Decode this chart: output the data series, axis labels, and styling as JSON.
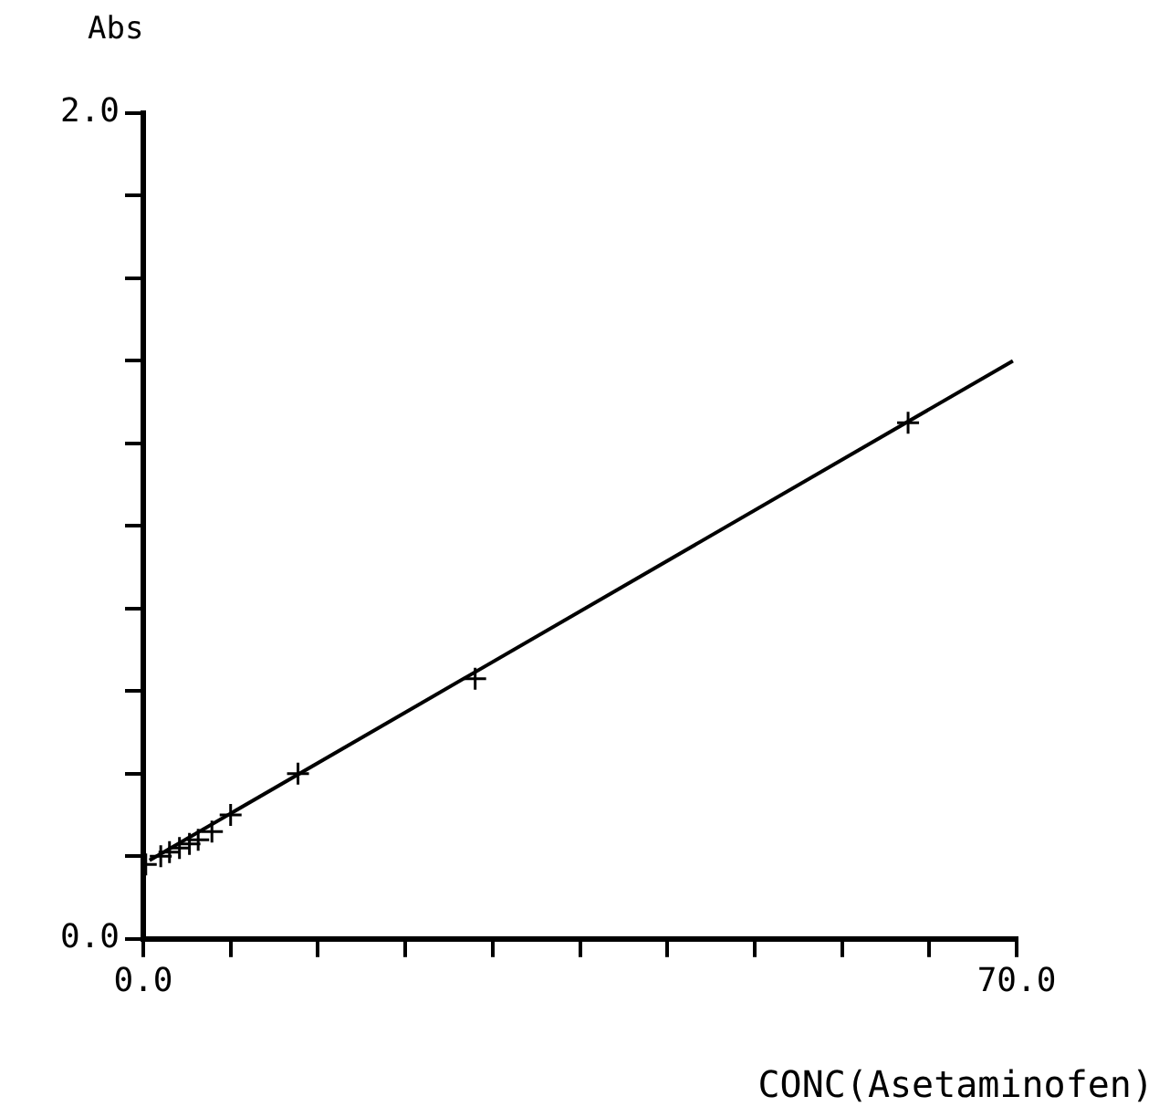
{
  "chart_data": {
    "type": "scatter",
    "xlabel": "CONC(Asetaminofen)",
    "ylabel": "Abs",
    "marker": "cross",
    "grid": false,
    "legend": false,
    "xlim": [
      0,
      70
    ],
    "ylim": [
      0,
      2
    ],
    "xticks": [
      {
        "value": 0,
        "label": "0.0"
      },
      {
        "value": 7,
        "label": null
      },
      {
        "value": 14,
        "label": null
      },
      {
        "value": 21,
        "label": null
      },
      {
        "value": 28,
        "label": null
      },
      {
        "value": 35,
        "label": null
      },
      {
        "value": 42,
        "label": null
      },
      {
        "value": 49,
        "label": null
      },
      {
        "value": 56,
        "label": null
      },
      {
        "value": 63,
        "label": null
      },
      {
        "value": 70,
        "label": "70.0"
      }
    ],
    "yticks": [
      {
        "value": 0,
        "label": "0.0"
      },
      {
        "value": 0.2,
        "label": null
      },
      {
        "value": 0.4,
        "label": null
      },
      {
        "value": 0.6,
        "label": null
      },
      {
        "value": 0.8,
        "label": null
      },
      {
        "value": 1.0,
        "label": null
      },
      {
        "value": 1.2,
        "label": null
      },
      {
        "value": 1.4,
        "label": null
      },
      {
        "value": 1.6,
        "label": null
      },
      {
        "value": 1.8,
        "label": null
      },
      {
        "value": 2.0,
        "label": "2.0"
      }
    ],
    "series": [
      {
        "color": "#000000",
        "x": [
          0.2,
          1.4,
          2.1,
          2.9,
          3.7,
          4.4,
          5.5,
          7.0,
          12.4,
          26.6,
          61.3
        ],
        "values": [
          0.18,
          0.2,
          0.21,
          0.22,
          0.23,
          0.24,
          0.26,
          0.3,
          0.4,
          0.63,
          1.25
        ]
      },
      {
        "type": "line",
        "color": "#000000",
        "marker": "none",
        "x": [
          0.5,
          69.7
        ],
        "values": [
          0.19,
          1.4
        ]
      }
    ]
  }
}
